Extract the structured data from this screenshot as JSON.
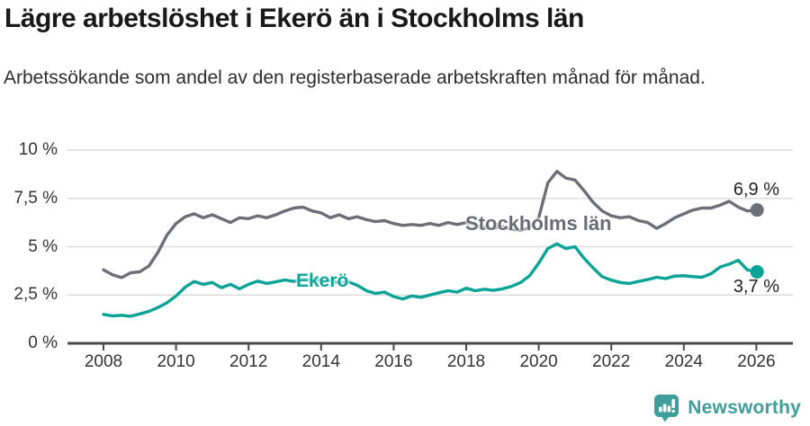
{
  "chart_data": {
    "type": "line",
    "title": "Lägre arbetslöshet i Ekerö än i Stockholms län",
    "subtitle": "Arbetssökande som andel av den registerbaserade arbetskraften månad för månad.",
    "unit": "%",
    "grid": true,
    "ylim": [
      0,
      10
    ],
    "xlim": [
      2007,
      2027
    ],
    "y_ticks": [
      "10 %",
      "7,5 %",
      "5 %",
      "2,5 %",
      "0 %"
    ],
    "y_tick_values": [
      10,
      7.5,
      5,
      2.5,
      0
    ],
    "x_ticks": [
      "2008",
      "2010",
      "2012",
      "2014",
      "2016",
      "2018",
      "2020",
      "2022",
      "2024",
      "2026"
    ],
    "x_tick_values": [
      2008,
      2010,
      2012,
      2014,
      2016,
      2018,
      2020,
      2022,
      2024,
      2026
    ],
    "legend_position": "inline-labels",
    "x": [
      2008,
      2008.25,
      2008.5,
      2008.75,
      2009,
      2009.25,
      2009.5,
      2009.75,
      2010,
      2010.25,
      2010.5,
      2010.75,
      2011,
      2011.25,
      2011.5,
      2011.75,
      2012,
      2012.25,
      2012.5,
      2012.75,
      2013,
      2013.25,
      2013.5,
      2013.75,
      2014,
      2014.25,
      2014.5,
      2014.75,
      2015,
      2015.25,
      2015.5,
      2015.75,
      2016,
      2016.25,
      2016.5,
      2016.75,
      2017,
      2017.25,
      2017.5,
      2017.75,
      2018,
      2018.25,
      2018.5,
      2018.75,
      2019,
      2019.25,
      2019.5,
      2019.75,
      2020,
      2020.25,
      2020.5,
      2020.75,
      2021,
      2021.25,
      2021.5,
      2021.75,
      2022,
      2022.25,
      2022.5,
      2022.75,
      2023,
      2023.25,
      2023.5,
      2023.75,
      2024,
      2024.25,
      2024.5,
      2024.75,
      2025,
      2025.25,
      2025.5,
      2025.75,
      2026.02
    ],
    "series": [
      {
        "name": "Stockholms län",
        "color": "#6e6e78",
        "end_label": "6,9 %",
        "end_value": 6.9,
        "values": [
          3.8,
          3.55,
          3.4,
          3.65,
          3.7,
          4.0,
          4.7,
          5.6,
          6.2,
          6.55,
          6.7,
          6.5,
          6.65,
          6.45,
          6.25,
          6.5,
          6.45,
          6.6,
          6.5,
          6.65,
          6.85,
          7.0,
          7.05,
          6.85,
          6.75,
          6.5,
          6.65,
          6.45,
          6.55,
          6.4,
          6.3,
          6.35,
          6.2,
          6.1,
          6.15,
          6.1,
          6.2,
          6.1,
          6.25,
          6.15,
          6.25,
          6.1,
          6.0,
          5.95,
          6.05,
          5.9,
          5.85,
          6.0,
          6.5,
          8.3,
          8.9,
          8.55,
          8.45,
          7.9,
          7.3,
          6.85,
          6.6,
          6.5,
          6.55,
          6.35,
          6.25,
          5.95,
          6.2,
          6.5,
          6.7,
          6.9,
          7.0,
          7.0,
          7.15,
          7.35,
          7.05,
          6.85,
          6.9
        ]
      },
      {
        "name": "Ekerö",
        "color": "#0aa396",
        "end_label": "3,7 %",
        "end_value": 3.7,
        "values": [
          1.5,
          1.42,
          1.45,
          1.4,
          1.52,
          1.65,
          1.85,
          2.1,
          2.45,
          2.9,
          3.2,
          3.05,
          3.15,
          2.88,
          3.05,
          2.82,
          3.05,
          3.22,
          3.1,
          3.18,
          3.28,
          3.2,
          3.35,
          3.22,
          3.3,
          3.25,
          3.12,
          3.18,
          3.0,
          2.72,
          2.58,
          2.65,
          2.42,
          2.3,
          2.45,
          2.38,
          2.5,
          2.62,
          2.72,
          2.65,
          2.85,
          2.72,
          2.8,
          2.74,
          2.82,
          2.95,
          3.15,
          3.5,
          4.15,
          4.9,
          5.15,
          4.9,
          5.0,
          4.4,
          3.9,
          3.45,
          3.27,
          3.15,
          3.1,
          3.2,
          3.3,
          3.42,
          3.35,
          3.48,
          3.5,
          3.45,
          3.42,
          3.6,
          3.95,
          4.1,
          4.3,
          3.8,
          3.7
        ]
      }
    ]
  },
  "footer": {
    "brand": "Newsworthy",
    "logo_icon": "speech-bubble-bar-chart",
    "brand_color": "#3f9e9a"
  },
  "style_colors": {
    "gridline": "#dcdcdc",
    "axis": "#4a4a4a",
    "tick_label": "#333333",
    "title": "#191919",
    "subtitle": "#2d2d2d"
  }
}
